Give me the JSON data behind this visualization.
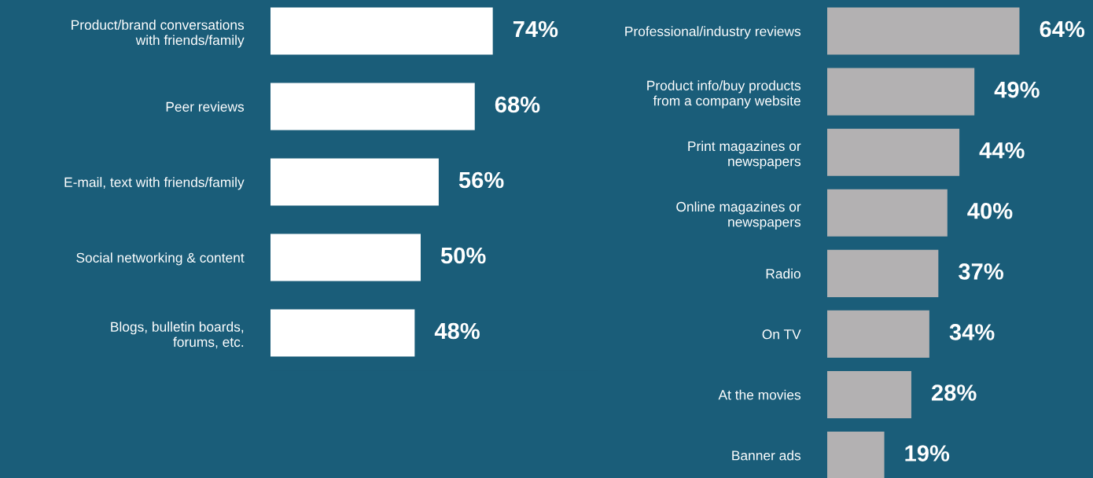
{
  "chart_data": [
    {
      "type": "bar",
      "orientation": "horizontal",
      "tick_labels": "y",
      "grid": false,
      "legend": false,
      "categories": [
        "Product/brand conversations\nwith friends/family",
        "Peer reviews",
        "E-mail, text with friends/family",
        "Social networking & content",
        "Blogs, bulletin boards,\nforums, etc."
      ],
      "values": [
        74,
        68,
        56,
        50,
        48
      ],
      "value_labels": [
        "74%",
        "68%",
        "56%",
        "50%",
        "48%"
      ],
      "color": "#ffffff"
    },
    {
      "type": "bar",
      "orientation": "horizontal",
      "tick_labels": "y",
      "grid": false,
      "legend": false,
      "categories": [
        "Professional/industry reviews",
        "Product info/buy products\nfrom a company website",
        "Print magazines or\nnewspapers",
        "Online magazines or\nnewspapers",
        "Radio",
        "On TV",
        "At the movies",
        "Banner ads"
      ],
      "values": [
        64,
        49,
        44,
        40,
        37,
        34,
        28,
        19
      ],
      "value_labels": [
        "64%",
        "49%",
        "44%",
        "40%",
        "37%",
        "34%",
        "28%",
        "19%"
      ],
      "color": "#b3b1b2"
    }
  ]
}
